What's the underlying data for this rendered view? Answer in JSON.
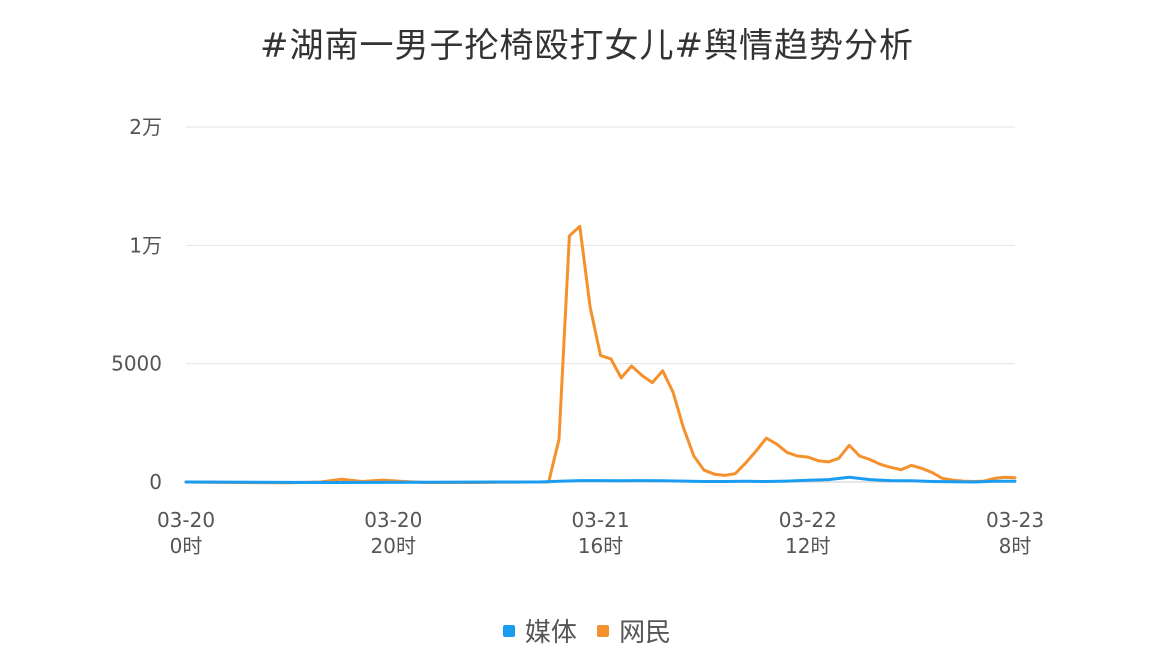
{
  "chart_data": {
    "type": "line",
    "title": "#湖南一男子抡椅殴打女儿#舆情趋势分析",
    "y_ticks": [
      {
        "value": 0,
        "label": "0"
      },
      {
        "value": 5000,
        "label": "5000"
      },
      {
        "value": 10000,
        "label": "1万"
      },
      {
        "value": 15000,
        "label": "2万"
      }
    ],
    "ylim": [
      0,
      15000
    ],
    "xlim": [
      0,
      80
    ],
    "x_unit": "hours since 03-20 0时",
    "x_ticks": [
      {
        "value": 0,
        "line1": "03-20",
        "line2": "0时"
      },
      {
        "value": 20,
        "line1": "03-20",
        "line2": "20时"
      },
      {
        "value": 40,
        "line1": "03-21",
        "line2": "16时"
      },
      {
        "value": 60,
        "line1": "03-22",
        "line2": "12时"
      },
      {
        "value": 80,
        "line1": "03-23",
        "line2": "8时"
      }
    ],
    "grid": true,
    "legend_position": "bottom-center",
    "series": [
      {
        "name": "媒体",
        "color": "#1a9cf0",
        "points": [
          [
            0,
            0
          ],
          [
            14,
            -20
          ],
          [
            30,
            0
          ],
          [
            34,
            0
          ],
          [
            36,
            30
          ],
          [
            38,
            60
          ],
          [
            40,
            60
          ],
          [
            42,
            50
          ],
          [
            44,
            60
          ],
          [
            46,
            50
          ],
          [
            48,
            40
          ],
          [
            50,
            20
          ],
          [
            52,
            20
          ],
          [
            54,
            30
          ],
          [
            56,
            20
          ],
          [
            58,
            40
          ],
          [
            60,
            70
          ],
          [
            62,
            100
          ],
          [
            64,
            200
          ],
          [
            66,
            100
          ],
          [
            68,
            60
          ],
          [
            70,
            50
          ],
          [
            72,
            20
          ],
          [
            74,
            10
          ],
          [
            76,
            0
          ],
          [
            78,
            30
          ],
          [
            80,
            30
          ]
        ]
      },
      {
        "name": "网民",
        "color": "#f5912d",
        "points": [
          [
            0,
            0
          ],
          [
            5,
            -20
          ],
          [
            10,
            -30
          ],
          [
            13,
            0
          ],
          [
            15,
            120
          ],
          [
            17,
            20
          ],
          [
            19,
            80
          ],
          [
            21,
            20
          ],
          [
            23,
            -20
          ],
          [
            28,
            -20
          ],
          [
            33,
            0
          ],
          [
            35,
            0
          ],
          [
            36,
            1800
          ],
          [
            37,
            10400
          ],
          [
            38,
            10800
          ],
          [
            39,
            7400
          ],
          [
            40,
            5350
          ],
          [
            41,
            5200
          ],
          [
            42,
            4400
          ],
          [
            43,
            4900
          ],
          [
            44,
            4500
          ],
          [
            45,
            4200
          ],
          [
            46,
            4700
          ],
          [
            47,
            3800
          ],
          [
            48,
            2300
          ],
          [
            49,
            1100
          ],
          [
            50,
            500
          ],
          [
            51,
            330
          ],
          [
            52,
            280
          ],
          [
            53,
            350
          ],
          [
            54,
            800
          ],
          [
            55,
            1300
          ],
          [
            56,
            1850
          ],
          [
            57,
            1600
          ],
          [
            58,
            1250
          ],
          [
            59,
            1100
          ],
          [
            60,
            1050
          ],
          [
            61,
            900
          ],
          [
            62,
            850
          ],
          [
            63,
            1000
          ],
          [
            64,
            1550
          ],
          [
            65,
            1100
          ],
          [
            66,
            950
          ],
          [
            67,
            750
          ],
          [
            68,
            620
          ],
          [
            69,
            520
          ],
          [
            70,
            700
          ],
          [
            71,
            580
          ],
          [
            72,
            400
          ],
          [
            73,
            150
          ],
          [
            74,
            80
          ],
          [
            75,
            40
          ],
          [
            76,
            20
          ],
          [
            77,
            40
          ],
          [
            78,
            150
          ],
          [
            79,
            200
          ],
          [
            80,
            180
          ]
        ]
      }
    ]
  }
}
